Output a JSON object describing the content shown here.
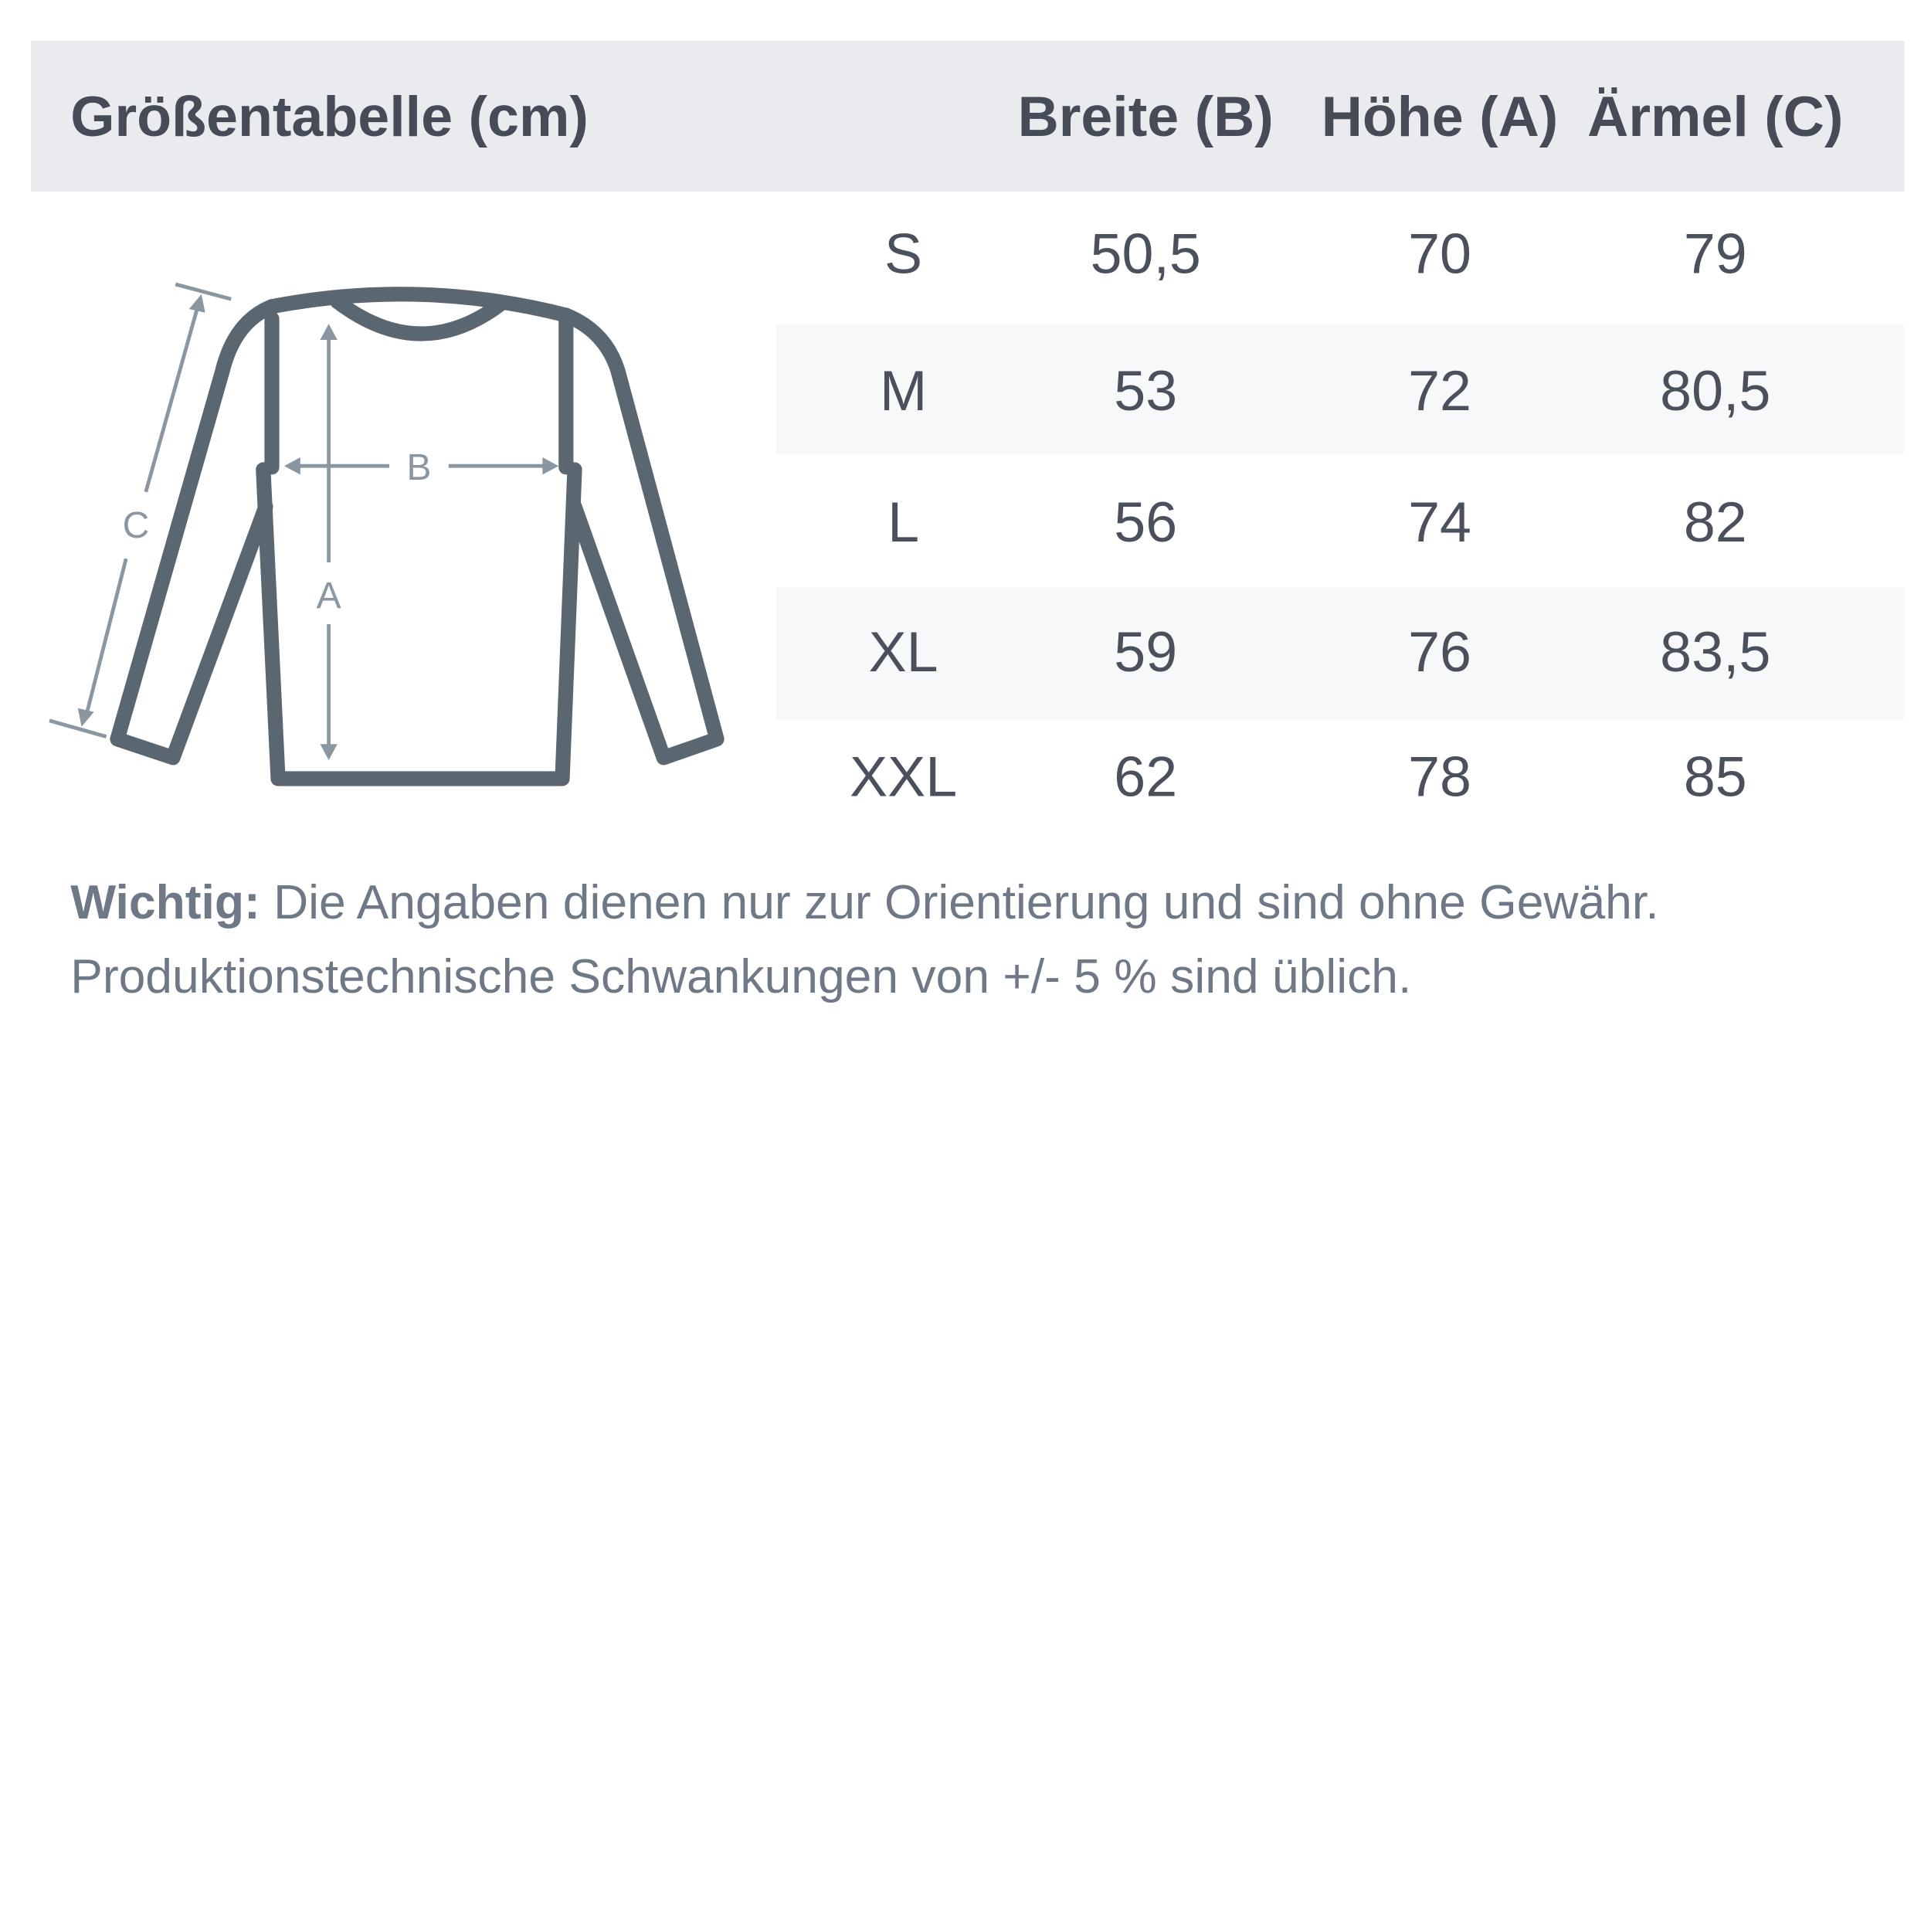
{
  "title": "Größentabelle (cm)",
  "columns": [
    "Breite (B)",
    "Höhe (A)",
    "Ärmel (C)"
  ],
  "rows": [
    {
      "size": "S",
      "values": [
        "50,5",
        "70",
        "79"
      ]
    },
    {
      "size": "M",
      "values": [
        "53",
        "72",
        "80,5"
      ]
    },
    {
      "size": "L",
      "values": [
        "56",
        "74",
        "82"
      ]
    },
    {
      "size": "XL",
      "values": [
        "59",
        "76",
        "83,5"
      ]
    },
    {
      "size": "XXL",
      "values": [
        "62",
        "78",
        "85"
      ]
    }
  ],
  "diagram": {
    "label_a": "A",
    "label_b": "B",
    "label_c": "C"
  },
  "note": {
    "label": "Wichtig:",
    "line1": "Die Angaben dienen nur zur Orientierung und sind ohne Gewähr.",
    "line2": "Produktionstechnische Schwankungen von +/- 5 % sind üblich."
  },
  "colors": {
    "header_bg": "#e9ebee",
    "stripe_bg": "#f7f8fa",
    "outline": "#5a6670",
    "measure": "#8a96a0"
  }
}
